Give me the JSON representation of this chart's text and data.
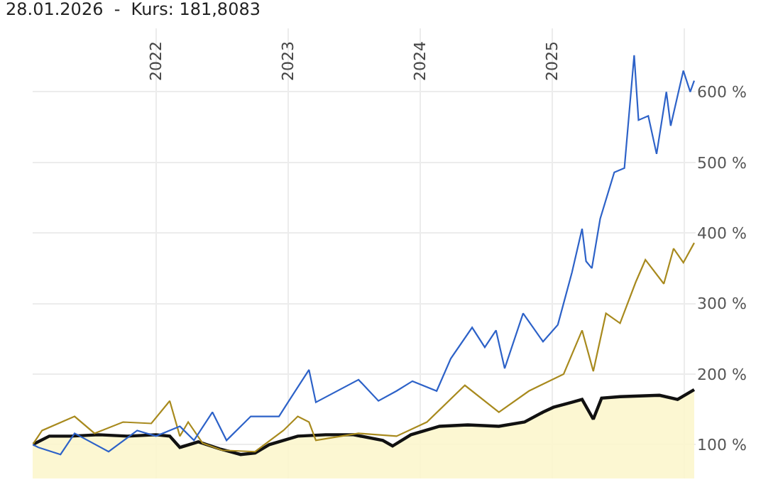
{
  "chart_data": {
    "type": "line",
    "title": "28.01.2026  -  Kurs: 181,8083",
    "xlim": [
      "2021-01-25",
      "2026-02-01"
    ],
    "xticks": [
      {
        "value": "2022-01-01",
        "label": "2022"
      },
      {
        "value": "2023-01-01",
        "label": "2023"
      },
      {
        "value": "2024-01-01",
        "label": "2024"
      },
      {
        "value": "2025-01-01",
        "label": "2025"
      },
      {
        "value": "2026-01-01",
        "label": null
      }
    ],
    "ylim": [
      52,
      690
    ],
    "yticks": [
      {
        "value": 100,
        "label": "100 %"
      },
      {
        "value": 200,
        "label": "200 %"
      },
      {
        "value": 300,
        "label": "300 %"
      },
      {
        "value": 400,
        "label": "400 %"
      },
      {
        "value": 500,
        "label": "500 %"
      },
      {
        "value": 600,
        "label": "600 %"
      }
    ],
    "grid": true,
    "series": [
      {
        "type": "area",
        "color": "#111111",
        "x": [
          "2021-01-25",
          "2021-03-12",
          "2021-05-10",
          "2021-07-27",
          "2021-10-14",
          "2022-01-01",
          "2022-02-08",
          "2022-03-08",
          "2022-04-28",
          "2022-06-26",
          "2022-08-23",
          "2022-10-02",
          "2022-11-10",
          "2023-01-28",
          "2023-04-15",
          "2023-07-01",
          "2023-09-20",
          "2023-10-17",
          "2023-12-07",
          "2024-02-24",
          "2024-05-12",
          "2024-08-06",
          "2024-10-16",
          "2024-12-06",
          "2025-01-04",
          "2025-02-24",
          "2025-03-24",
          "2025-04-24",
          "2025-05-17",
          "2025-07-07",
          "2025-10-24",
          "2025-12-13",
          "2026-01-28"
        ],
        "values": [
          100,
          112,
          112,
          114,
          112,
          114,
          112,
          96,
          104,
          94,
          86,
          88,
          100,
          112,
          114,
          114,
          106,
          98,
          114,
          126,
          128,
          126,
          132,
          146,
          153,
          160,
          164,
          136,
          166,
          168,
          170,
          164,
          178
        ]
      },
      {
        "color": "#a88a1e",
        "x": [
          "2021-01-25",
          "2021-02-20",
          "2021-05-21",
          "2021-07-15",
          "2021-10-02",
          "2021-12-19",
          "2022-02-08",
          "2022-03-08",
          "2022-03-31",
          "2022-05-10",
          "2022-07-03",
          "2022-10-02",
          "2022-12-19",
          "2023-01-28",
          "2023-02-28",
          "2023-03-19",
          "2023-07-15",
          "2023-10-28",
          "2024-01-20",
          "2024-05-04",
          "2024-08-06",
          "2024-10-28",
          "2025-02-01",
          "2025-03-24",
          "2025-04-24",
          "2025-05-29",
          "2025-07-07",
          "2025-08-19",
          "2025-09-15",
          "2025-11-05",
          "2025-12-02",
          "2025-12-29",
          "2026-01-28"
        ],
        "values": [
          100,
          120,
          140,
          116,
          132,
          130,
          162,
          112,
          132,
          102,
          92,
          90,
          120,
          140,
          132,
          106,
          116,
          112,
          132,
          184,
          146,
          176,
          200,
          262,
          204,
          286,
          272,
          330,
          362,
          328,
          378,
          358,
          386
        ]
      },
      {
        "color": "#2d62c8",
        "x": [
          "2021-01-25",
          "2021-02-10",
          "2021-04-12",
          "2021-05-21",
          "2021-08-23",
          "2021-11-10",
          "2022-01-01",
          "2022-03-08",
          "2022-04-16",
          "2022-06-06",
          "2022-07-15",
          "2022-09-20",
          "2022-12-07",
          "2023-01-01",
          "2023-02-28",
          "2023-03-19",
          "2023-07-15",
          "2023-09-08",
          "2023-10-28",
          "2023-12-11",
          "2024-02-16",
          "2024-03-26",
          "2024-05-24",
          "2024-06-28",
          "2024-07-29",
          "2024-08-22",
          "2024-10-12",
          "2024-12-06",
          "2025-01-16",
          "2025-02-24",
          "2025-03-24",
          "2025-04-04",
          "2025-04-20",
          "2025-05-13",
          "2025-06-21",
          "2025-07-19",
          "2025-08-15",
          "2025-08-27",
          "2025-09-23",
          "2025-10-16",
          "2025-11-12",
          "2025-11-24",
          "2025-12-29",
          "2026-01-17",
          "2026-01-28"
        ],
        "values": [
          100,
          96,
          86,
          116,
          90,
          120,
          112,
          126,
          106,
          146,
          106,
          140,
          140,
          160,
          206,
          160,
          192,
          162,
          176,
          190,
          176,
          222,
          266,
          238,
          262,
          208,
          286,
          246,
          270,
          344,
          406,
          360,
          350,
          420,
          486,
          492,
          652,
          560,
          566,
          512,
          600,
          552,
          630,
          600,
          616
        ]
      }
    ]
  }
}
